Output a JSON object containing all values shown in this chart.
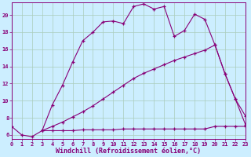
{
  "background_color": "#cceeff",
  "grid_color": "#aaccbb",
  "line_color": "#880077",
  "xlim": [
    0,
    23
  ],
  "ylim": [
    5.5,
    21.5
  ],
  "xticks": [
    0,
    1,
    2,
    3,
    4,
    5,
    6,
    7,
    8,
    9,
    10,
    11,
    12,
    13,
    14,
    15,
    16,
    17,
    18,
    19,
    20,
    21,
    22,
    23
  ],
  "yticks": [
    6,
    8,
    10,
    12,
    14,
    16,
    18,
    20
  ],
  "xlabel": "Windchill (Refroidissement éolien,°C)",
  "series1_x": [
    0,
    1,
    2,
    3,
    4,
    5,
    6,
    7,
    8,
    9,
    10,
    11,
    12,
    13,
    14,
    15,
    16,
    17,
    18,
    19,
    20,
    21,
    22,
    23
  ],
  "series1_y": [
    7.0,
    6.0,
    5.8,
    6.5,
    9.5,
    11.8,
    14.5,
    17.0,
    18.0,
    19.2,
    19.3,
    19.0,
    21.0,
    21.3,
    20.7,
    21.0,
    17.5,
    18.2,
    20.1,
    19.5,
    16.5,
    13.1,
    10.2,
    8.2
  ],
  "series2_x": [
    3,
    4,
    5,
    6,
    7,
    8,
    9,
    10,
    11,
    12,
    13,
    14,
    15,
    16,
    17,
    18,
    19,
    20,
    21,
    22,
    23
  ],
  "series2_y": [
    6.5,
    7.0,
    7.5,
    8.1,
    8.7,
    9.4,
    10.2,
    11.0,
    11.8,
    12.6,
    13.2,
    13.7,
    14.2,
    14.7,
    15.1,
    15.5,
    15.9,
    16.5,
    13.1,
    10.2,
    7.2
  ],
  "series3_x": [
    3,
    4,
    5,
    6,
    7,
    8,
    9,
    10,
    11,
    12,
    13,
    14,
    15,
    16,
    17,
    18,
    19,
    20,
    21,
    22,
    23
  ],
  "series3_y": [
    6.5,
    6.5,
    6.5,
    6.5,
    6.6,
    6.6,
    6.6,
    6.6,
    6.7,
    6.7,
    6.7,
    6.7,
    6.7,
    6.7,
    6.7,
    6.7,
    6.7,
    7.0,
    7.0,
    7.0,
    7.0
  ],
  "axis_fontsize": 6.0,
  "tick_fontsize": 5.0
}
